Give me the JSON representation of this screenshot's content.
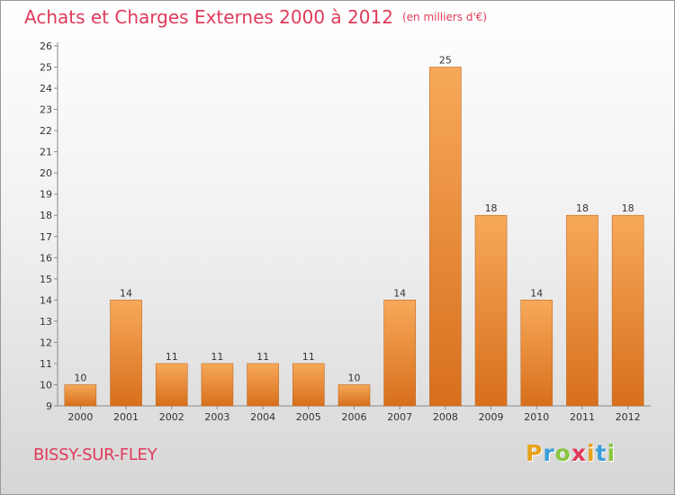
{
  "title": "Achats et Charges Externes 2000 à 2012",
  "unit": "(en milliers d'€)",
  "commune": "BISSY-SUR-FLEY",
  "logo": {
    "letters": [
      "P",
      "r",
      "o",
      "x",
      "i",
      "t",
      "i"
    ],
    "colors": [
      "#e8a21a",
      "#3a9edb",
      "#8bc53f",
      "#e03a5a",
      "#e8a21a",
      "#3a9edb",
      "#8bc53f"
    ]
  },
  "colors": {
    "title": "#e03a5a",
    "bar_top": "#f7a95a",
    "bar_bottom": "#d76f1c",
    "bar_edge": "#c06a22"
  },
  "chart_data": {
    "type": "bar",
    "categories": [
      "2000",
      "2001",
      "2002",
      "2003",
      "2004",
      "2005",
      "2006",
      "2007",
      "2008",
      "2009",
      "2010",
      "2011",
      "2012"
    ],
    "values": [
      10,
      14,
      11,
      11,
      11,
      11,
      10,
      14,
      25,
      18,
      14,
      18,
      18
    ],
    "data_labels": [
      "10",
      "14",
      "11",
      "11",
      "11",
      "11",
      "10",
      "14",
      "25",
      "18",
      "14",
      "18",
      "18"
    ],
    "ylim": [
      9,
      26
    ],
    "yticks": [
      "9",
      "10",
      "11",
      "12",
      "13",
      "14",
      "15",
      "16",
      "17",
      "18",
      "19",
      "20",
      "21",
      "22",
      "23",
      "24",
      "25",
      "26"
    ],
    "grid": false,
    "legend": "none"
  }
}
